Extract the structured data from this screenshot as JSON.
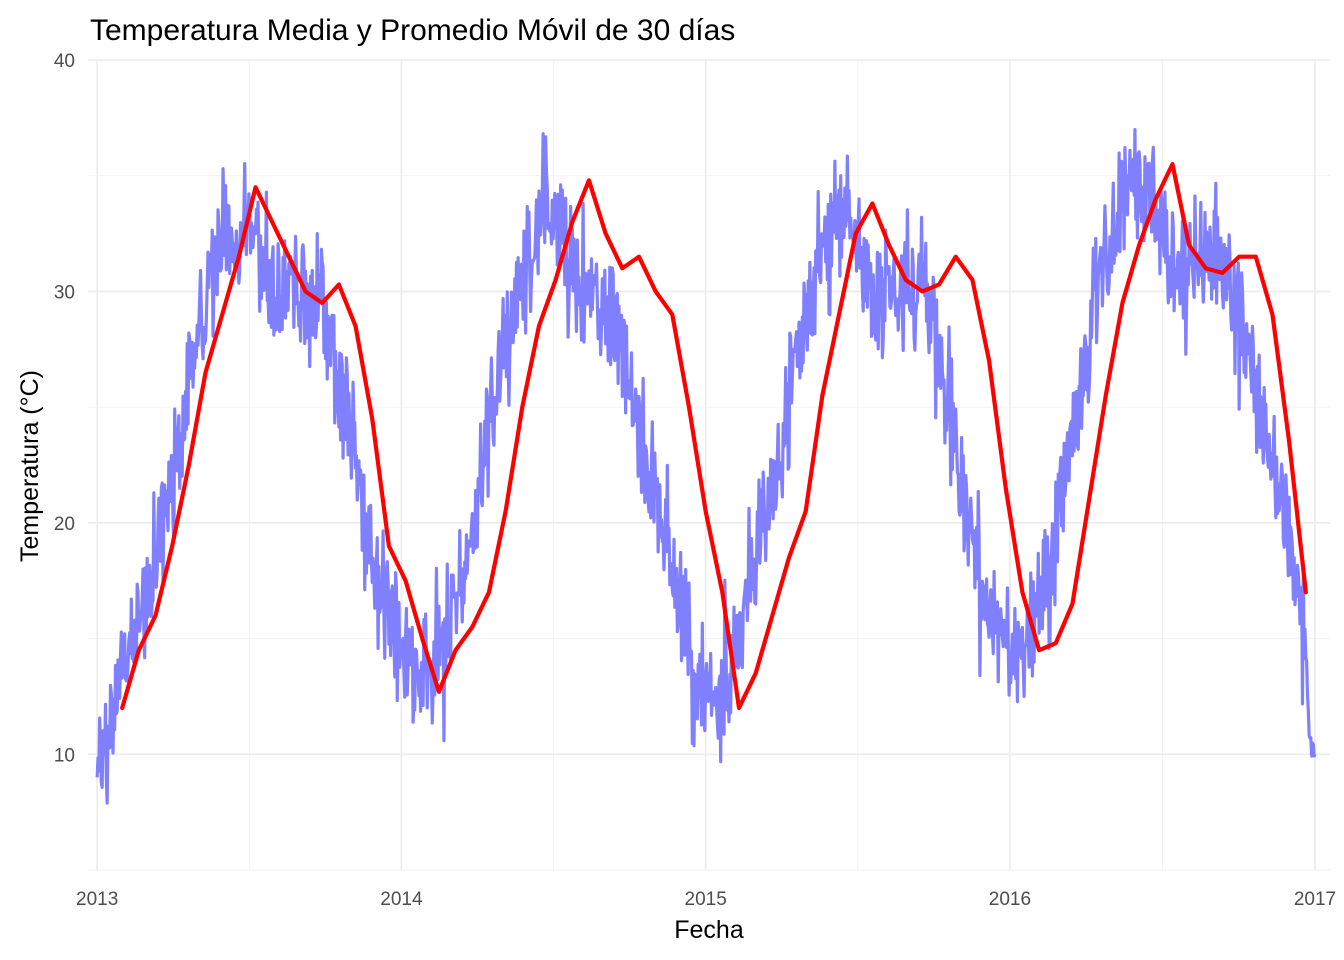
{
  "chart_data": {
    "type": "line",
    "title": "Temperatura Media y Promedio Móvil de 30 días",
    "xlabel": "Fecha",
    "ylabel": "Temperatura (°C)",
    "x_ticks": [
      "2013",
      "2014",
      "2015",
      "2016",
      "2017"
    ],
    "y_ticks": [
      10,
      20,
      30,
      40
    ],
    "xlim": [
      "2012-12-21",
      "2017-01-19"
    ],
    "ylim": [
      5,
      40
    ],
    "grid": true,
    "colors": {
      "daily": "#8080ff",
      "moving_average": "#ff0000"
    },
    "series": [
      {
        "key": "daily",
        "x": [
          "2013-01-01",
          "2013-01-31",
          "2013-03-02",
          "2013-04-01",
          "2013-05-01",
          "2013-05-31",
          "2013-06-30",
          "2013-07-30",
          "2013-08-29",
          "2013-09-28",
          "2013-10-28",
          "2013-11-27",
          "2013-12-27",
          "2014-01-26",
          "2014-02-25",
          "2014-03-27",
          "2014-04-26",
          "2014-05-26",
          "2014-06-25",
          "2014-07-25",
          "2014-08-24",
          "2014-09-23",
          "2014-10-23",
          "2014-11-22",
          "2014-12-22",
          "2015-01-21",
          "2015-02-20",
          "2015-03-22",
          "2015-04-21",
          "2015-05-21",
          "2015-06-20",
          "2015-07-20",
          "2015-08-19",
          "2015-09-18",
          "2015-10-18",
          "2015-11-17",
          "2015-12-17",
          "2016-01-16",
          "2016-02-15",
          "2016-03-16",
          "2016-04-15",
          "2016-05-15",
          "2016-06-14",
          "2016-07-14",
          "2016-08-13",
          "2016-09-12",
          "2016-10-12",
          "2016-11-11",
          "2016-12-11",
          "2017-01-01"
        ],
        "values": [
          9.0,
          13.5,
          17.0,
          22.0,
          27.5,
          32.5,
          33.0,
          30.5,
          30.0,
          29.0,
          25.0,
          18.0,
          15.5,
          13.5,
          15.0,
          20.0,
          26.0,
          30.0,
          34.0,
          31.5,
          30.0,
          28.0,
          23.0,
          18.0,
          13.0,
          12.5,
          17.0,
          22.0,
          27.0,
          32.0,
          33.5,
          30.0,
          30.0,
          30.5,
          26.0,
          19.0,
          15.0,
          14.0,
          17.5,
          24.0,
          30.0,
          34.0,
          35.0,
          31.0,
          31.0,
          31.5,
          28.0,
          22.0,
          18.0,
          10.0
        ]
      },
      {
        "key": "moving_average",
        "x": [
          "2013-01-31",
          "2013-02-20",
          "2013-03-12",
          "2013-04-01",
          "2013-04-21",
          "2013-05-11",
          "2013-05-31",
          "2013-06-20",
          "2013-07-10",
          "2013-07-30",
          "2013-08-19",
          "2013-09-08",
          "2013-09-28",
          "2013-10-18",
          "2013-11-07",
          "2013-11-27",
          "2013-12-17",
          "2014-01-06",
          "2014-01-26",
          "2014-02-15",
          "2014-03-07",
          "2014-03-27",
          "2014-04-16",
          "2014-05-06",
          "2014-05-26",
          "2014-06-15",
          "2014-07-05",
          "2014-07-25",
          "2014-08-14",
          "2014-09-03",
          "2014-09-23",
          "2014-10-13",
          "2014-11-02",
          "2014-11-22",
          "2014-12-12",
          "2015-01-01",
          "2015-01-21",
          "2015-02-10",
          "2015-03-02",
          "2015-03-22",
          "2015-04-11",
          "2015-05-01",
          "2015-05-21",
          "2015-06-10",
          "2015-06-30",
          "2015-07-20",
          "2015-08-09",
          "2015-08-29",
          "2015-09-18",
          "2015-10-08",
          "2015-10-28",
          "2015-11-17",
          "2015-12-07",
          "2015-12-27",
          "2016-01-16",
          "2016-02-05",
          "2016-02-25",
          "2016-03-16",
          "2016-04-05",
          "2016-04-25",
          "2016-05-15",
          "2016-06-04",
          "2016-06-24",
          "2016-07-14",
          "2016-08-03",
          "2016-08-23",
          "2016-09-12",
          "2016-10-02",
          "2016-10-22",
          "2016-11-11",
          "2016-12-01",
          "2016-12-21"
        ],
        "values": [
          12.0,
          14.5,
          16.0,
          19.0,
          22.5,
          26.5,
          29.0,
          31.5,
          34.5,
          33.0,
          31.5,
          30.0,
          29.5,
          30.3,
          28.5,
          24.5,
          19.0,
          17.5,
          15.0,
          12.7,
          14.5,
          15.5,
          17.0,
          20.5,
          25.0,
          28.5,
          30.5,
          33.0,
          34.8,
          32.5,
          31.0,
          31.5,
          30.0,
          29.0,
          25.0,
          20.5,
          17.0,
          12.0,
          13.5,
          16.0,
          18.5,
          20.5,
          25.5,
          29.0,
          32.5,
          33.8,
          32.0,
          30.5,
          30.0,
          30.3,
          31.5,
          30.5,
          27.0,
          21.5,
          17.0,
          14.5,
          14.8,
          16.5,
          21.0,
          25.5,
          29.5,
          32.0,
          34.0,
          35.5,
          32.0,
          31.0,
          30.8,
          31.5,
          31.5,
          29.0,
          23.5,
          17.0
        ]
      }
    ]
  }
}
